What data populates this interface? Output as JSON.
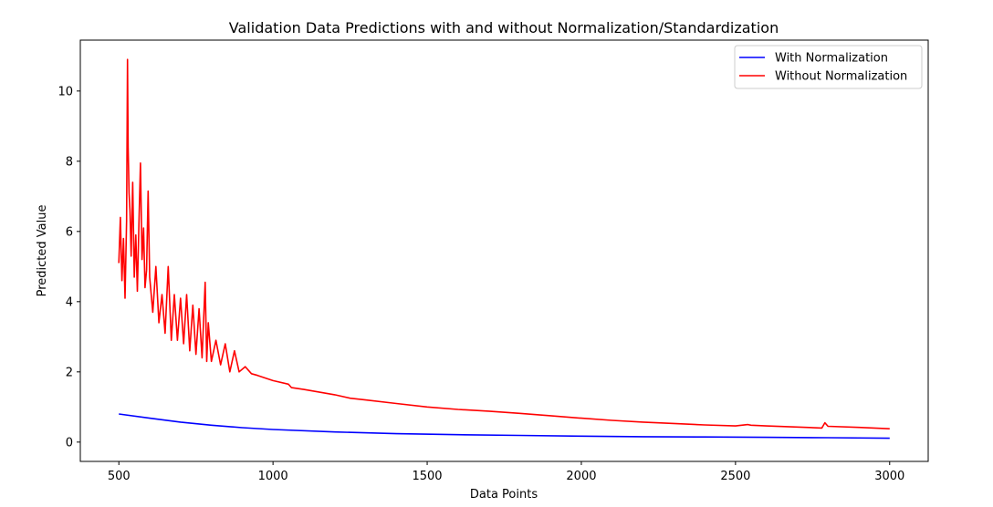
{
  "chart_data": {
    "type": "line",
    "title": "Validation Data Predictions with and without Normalization/Standardization",
    "xlabel": "Data Points",
    "ylabel": "Predicted Value",
    "xlim": [
      375,
      3125
    ],
    "ylim": [
      -0.55,
      11.45
    ],
    "x_ticks": [
      500,
      1000,
      1500,
      2000,
      2500,
      3000
    ],
    "y_ticks": [
      0,
      2,
      4,
      6,
      8,
      10
    ],
    "grid": false,
    "legend_position": "top-right",
    "series": [
      {
        "name": "With Normalization",
        "color": "#0000ff",
        "x": [
          500,
          600,
          700,
          800,
          900,
          1000,
          1200,
          1400,
          1600,
          1800,
          2000,
          2200,
          2400,
          2600,
          2800,
          3000
        ],
        "y": [
          0.8,
          0.68,
          0.57,
          0.48,
          0.41,
          0.36,
          0.29,
          0.24,
          0.21,
          0.19,
          0.17,
          0.155,
          0.145,
          0.135,
          0.125,
          0.11
        ]
      },
      {
        "name": "Without Normalization",
        "color": "#ff0000",
        "x": [
          500,
          505,
          510,
          515,
          520,
          525,
          528,
          530,
          533,
          536,
          540,
          545,
          550,
          555,
          560,
          565,
          570,
          575,
          580,
          585,
          590,
          595,
          600,
          610,
          620,
          630,
          640,
          650,
          660,
          670,
          680,
          690,
          700,
          710,
          720,
          730,
          740,
          750,
          760,
          770,
          780,
          785,
          790,
          800,
          815,
          830,
          845,
          860,
          875,
          890,
          910,
          930,
          950,
          1000,
          1050,
          1060,
          1100,
          1200,
          1250,
          1300,
          1400,
          1500,
          1600,
          1700,
          1800,
          1900,
          2000,
          2100,
          2200,
          2300,
          2400,
          2500,
          2540,
          2550,
          2600,
          2700,
          2780,
          2790,
          2800,
          2900,
          3000
        ],
        "y": [
          5.1,
          6.4,
          4.6,
          5.8,
          4.1,
          6.3,
          10.9,
          8.4,
          7.1,
          6.6,
          5.3,
          7.4,
          4.7,
          5.9,
          4.3,
          6.2,
          7.95,
          5.2,
          6.1,
          4.4,
          4.9,
          7.15,
          4.7,
          3.7,
          5.0,
          3.4,
          4.2,
          3.1,
          5.0,
          2.9,
          4.2,
          2.9,
          4.1,
          2.8,
          4.2,
          2.6,
          3.9,
          2.5,
          3.8,
          2.4,
          4.55,
          2.3,
          3.4,
          2.3,
          2.9,
          2.2,
          2.8,
          2.0,
          2.6,
          2.0,
          2.15,
          1.95,
          1.9,
          1.75,
          1.65,
          1.55,
          1.5,
          1.35,
          1.25,
          1.2,
          1.1,
          1.0,
          0.93,
          0.88,
          0.82,
          0.75,
          0.68,
          0.62,
          0.57,
          0.53,
          0.49,
          0.46,
          0.5,
          0.48,
          0.46,
          0.43,
          0.4,
          0.55,
          0.45,
          0.42,
          0.38
        ]
      }
    ]
  }
}
